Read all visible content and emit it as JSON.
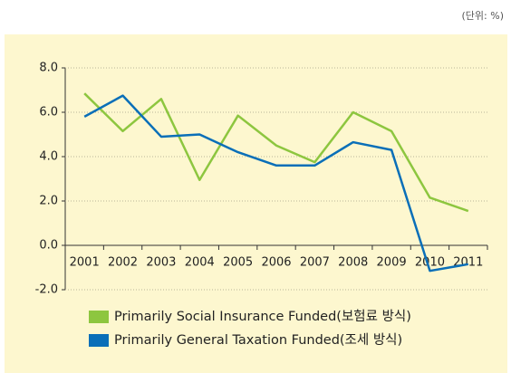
{
  "chart_data": {
    "type": "line",
    "unit_label": "(단위: %)",
    "categories": [
      "2001",
      "2002",
      "2003",
      "2004",
      "2005",
      "2006",
      "2007",
      "2008",
      "2009",
      "2010",
      "2011"
    ],
    "series": [
      {
        "name": "Primarily Social Insurance Funded(보험료 방식)",
        "color": "#8dc63f",
        "values": [
          6.85,
          5.15,
          6.6,
          2.95,
          5.85,
          4.5,
          3.75,
          6.0,
          5.15,
          2.15,
          1.55
        ]
      },
      {
        "name": "Primarily General Taxation Funded(조세 방식)",
        "color": "#0a6fb8",
        "values": [
          5.8,
          6.75,
          4.9,
          5.0,
          4.2,
          3.6,
          3.6,
          4.65,
          4.3,
          -1.15,
          -0.85
        ]
      }
    ],
    "ylim": [
      -2,
      8
    ],
    "yticks": [
      {
        "value": -2,
        "label": "-2.0"
      },
      {
        "value": 0,
        "label": "0.0"
      },
      {
        "value": 2,
        "label": "2.0"
      },
      {
        "value": 4,
        "label": "4.0"
      },
      {
        "value": 6,
        "label": "6.0"
      },
      {
        "value": 8,
        "label": "8.0"
      }
    ],
    "grid": true,
    "legend": "bottom"
  }
}
